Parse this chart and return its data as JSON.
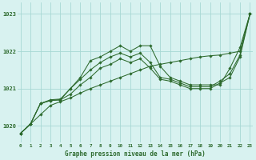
{
  "x": [
    0,
    1,
    2,
    3,
    4,
    5,
    6,
    7,
    8,
    9,
    10,
    11,
    12,
    13,
    14,
    15,
    16,
    17,
    18,
    19,
    20,
    21,
    22,
    23
  ],
  "line_straight": [
    1019.8,
    1020.05,
    1020.3,
    1020.55,
    1020.65,
    1020.75,
    1020.88,
    1021.0,
    1021.1,
    1021.2,
    1021.3,
    1021.4,
    1021.5,
    1021.6,
    1021.65,
    1021.7,
    1021.75,
    1021.8,
    1021.85,
    1021.88,
    1021.9,
    1021.95,
    1022.0,
    1023.0
  ],
  "line_peak": [
    1019.8,
    1020.05,
    1020.6,
    1020.7,
    1020.72,
    1021.0,
    1021.3,
    1021.75,
    1021.85,
    1022.0,
    1022.15,
    1022.0,
    1022.15,
    1022.15,
    1021.6,
    1021.3,
    1021.2,
    1021.1,
    1021.1,
    1021.1,
    1021.1,
    1021.55,
    1022.1,
    1023.0
  ],
  "line_mid1": [
    1019.8,
    1020.05,
    1020.6,
    1020.68,
    1020.7,
    1021.0,
    1021.25,
    1021.5,
    1021.7,
    1021.85,
    1021.95,
    1021.85,
    1021.95,
    1021.7,
    1021.3,
    1021.25,
    1021.15,
    1021.05,
    1021.05,
    1021.05,
    1021.2,
    1021.4,
    1021.9,
    1023.0
  ],
  "line_flat": [
    1019.8,
    1020.05,
    1020.6,
    1020.68,
    1020.7,
    1020.85,
    1021.1,
    1021.3,
    1021.55,
    1021.65,
    1021.8,
    1021.7,
    1021.8,
    1021.55,
    1021.25,
    1021.2,
    1021.1,
    1021.0,
    1021.0,
    1021.0,
    1021.15,
    1021.3,
    1021.85,
    1023.0
  ],
  "bg_color": "#d8f2f0",
  "grid_color": "#a8d8d4",
  "line_color": "#2d6a2d",
  "xlabel_label": "Graphe pression niveau de la mer (hPa)",
  "xtick_labels": [
    "0",
    "1",
    "2",
    "3",
    "4",
    "5",
    "6",
    "7",
    "8",
    "9",
    "10",
    "11",
    "12",
    "13",
    "14",
    "15",
    "16",
    "17",
    "18",
    "19",
    "20",
    "21",
    "22",
    "23"
  ],
  "ytick_labels": [
    "1020",
    "1021",
    "1022",
    "1023"
  ],
  "yticks": [
    1020,
    1021,
    1022,
    1023
  ],
  "ylim_min": 1019.55,
  "ylim_max": 1023.3,
  "xlim_min": -0.3,
  "xlim_max": 23.3
}
